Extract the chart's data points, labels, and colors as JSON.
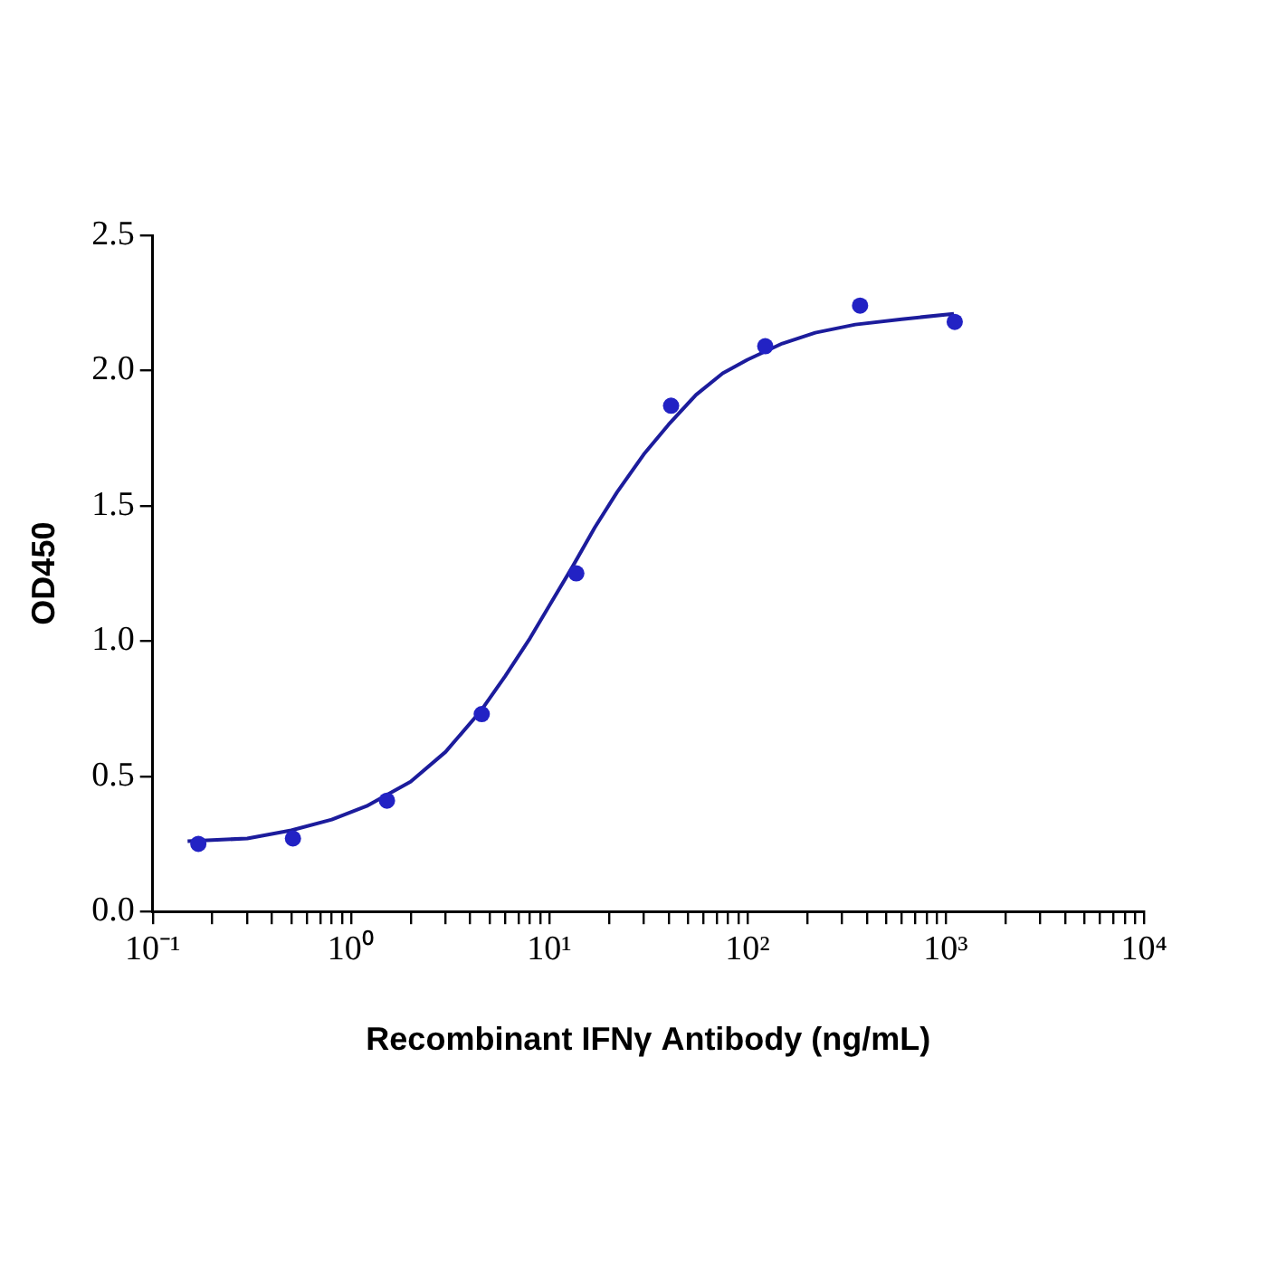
{
  "chart_data": {
    "type": "scatter",
    "xlabel": "Recombinant IFNγ Antibody (ng/mL)",
    "ylabel": "OD450",
    "log": "x",
    "grid": false,
    "legend": false,
    "xlim": [
      0.1,
      10000
    ],
    "ylim": [
      0,
      2.5
    ],
    "xticks": [
      {
        "value": 0.1,
        "label": "10⁻¹"
      },
      {
        "value": 0.2,
        "label": null
      },
      {
        "value": 0.3,
        "label": null
      },
      {
        "value": 0.4,
        "label": null
      },
      {
        "value": 0.5,
        "label": null
      },
      {
        "value": 0.6,
        "label": null
      },
      {
        "value": 0.7,
        "label": null
      },
      {
        "value": 0.8,
        "label": null
      },
      {
        "value": 0.9,
        "label": null
      },
      {
        "value": 1,
        "label": "10⁰"
      },
      {
        "value": 2,
        "label": null
      },
      {
        "value": 3,
        "label": null
      },
      {
        "value": 4,
        "label": null
      },
      {
        "value": 5,
        "label": null
      },
      {
        "value": 6,
        "label": null
      },
      {
        "value": 7,
        "label": null
      },
      {
        "value": 8,
        "label": null
      },
      {
        "value": 9,
        "label": null
      },
      {
        "value": 10,
        "label": "10¹"
      },
      {
        "value": 20,
        "label": null
      },
      {
        "value": 30,
        "label": null
      },
      {
        "value": 40,
        "label": null
      },
      {
        "value": 50,
        "label": null
      },
      {
        "value": 60,
        "label": null
      },
      {
        "value": 70,
        "label": null
      },
      {
        "value": 80,
        "label": null
      },
      {
        "value": 90,
        "label": null
      },
      {
        "value": 100,
        "label": "10²"
      },
      {
        "value": 200,
        "label": null
      },
      {
        "value": 300,
        "label": null
      },
      {
        "value": 400,
        "label": null
      },
      {
        "value": 500,
        "label": null
      },
      {
        "value": 600,
        "label": null
      },
      {
        "value": 700,
        "label": null
      },
      {
        "value": 800,
        "label": null
      },
      {
        "value": 900,
        "label": null
      },
      {
        "value": 1000,
        "label": "10³"
      },
      {
        "value": 2000,
        "label": null
      },
      {
        "value": 3000,
        "label": null
      },
      {
        "value": 4000,
        "label": null
      },
      {
        "value": 5000,
        "label": null
      },
      {
        "value": 6000,
        "label": null
      },
      {
        "value": 7000,
        "label": null
      },
      {
        "value": 8000,
        "label": null
      },
      {
        "value": 9000,
        "label": null
      },
      {
        "value": 10000,
        "label": "10⁴"
      }
    ],
    "yticks": [
      {
        "value": 0,
        "label": "0.0"
      },
      {
        "value": 0.5,
        "label": "0.5"
      },
      {
        "value": 1,
        "label": "1.0"
      },
      {
        "value": 1.5,
        "label": "1.5"
      },
      {
        "value": 2,
        "label": "2.0"
      },
      {
        "value": 2.5,
        "label": "2.5"
      }
    ],
    "series": [
      {
        "type": "scatter",
        "color": "#2222c4",
        "marker": "circle",
        "x": [
          0.17,
          0.51,
          1.52,
          4.57,
          13.7,
          41.2,
          123,
          370,
          1111
        ],
        "values": [
          0.25,
          0.27,
          0.41,
          0.73,
          1.25,
          1.87,
          2.09,
          2.24,
          2.18
        ]
      },
      {
        "type": "line",
        "color": "#1c1c9c",
        "marker": "none",
        "line_style": "solid",
        "x": [
          0.15,
          0.3,
          0.5,
          0.8,
          1.2,
          2,
          3,
          4.5,
          6,
          8,
          10,
          13,
          17,
          22,
          30,
          40,
          55,
          75,
          100,
          150,
          220,
          350,
          600,
          1100
        ],
        "values": [
          0.26,
          0.27,
          0.3,
          0.34,
          0.39,
          0.48,
          0.59,
          0.74,
          0.87,
          1.01,
          1.13,
          1.27,
          1.42,
          1.55,
          1.69,
          1.8,
          1.91,
          1.99,
          2.04,
          2.1,
          2.14,
          2.17,
          2.19,
          2.21
        ]
      }
    ]
  }
}
